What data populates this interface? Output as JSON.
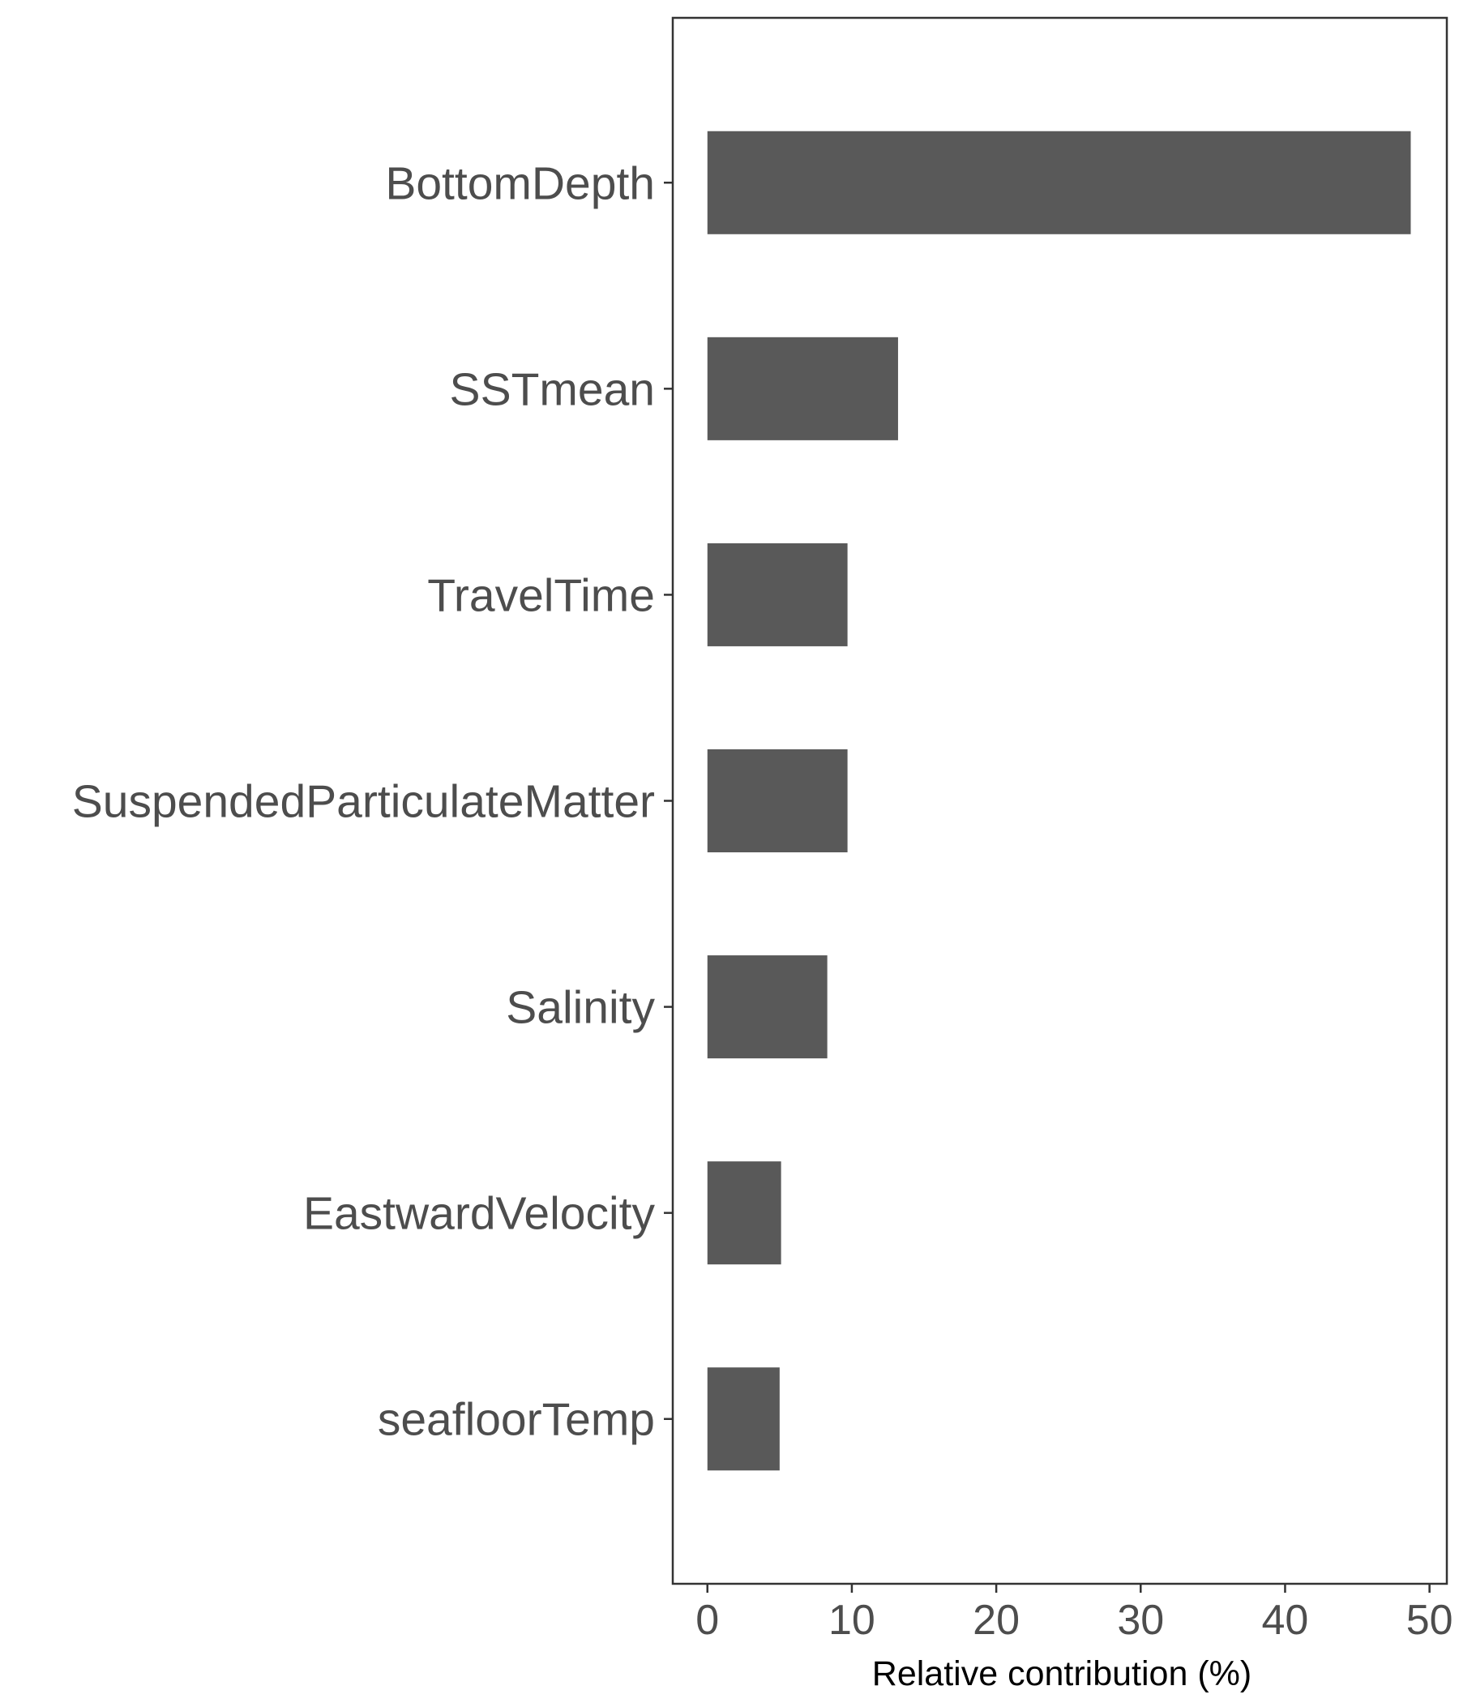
{
  "chart_data": {
    "type": "bar",
    "orientation": "horizontal",
    "title": "",
    "xlabel": "Relative contribution (%)",
    "ylabel": "",
    "xlim": [
      -2.4,
      51.2
    ],
    "xticks": [
      0,
      10,
      20,
      30,
      40,
      50
    ],
    "xtick_labels": [
      "0",
      "10",
      "20",
      "30",
      "40",
      "50"
    ],
    "grid": false,
    "legend": "none",
    "categories": [
      "BottomDepth",
      "SSTmean",
      "TravelTime",
      "SuspendedParticulateMatter",
      "Salinity",
      "EastwardVelocity",
      "seafloorTemp"
    ],
    "values": [
      48.7,
      13.2,
      9.7,
      9.7,
      8.3,
      5.1,
      5.0
    ],
    "bar_color": "#595959",
    "axis_color": "#333333"
  }
}
